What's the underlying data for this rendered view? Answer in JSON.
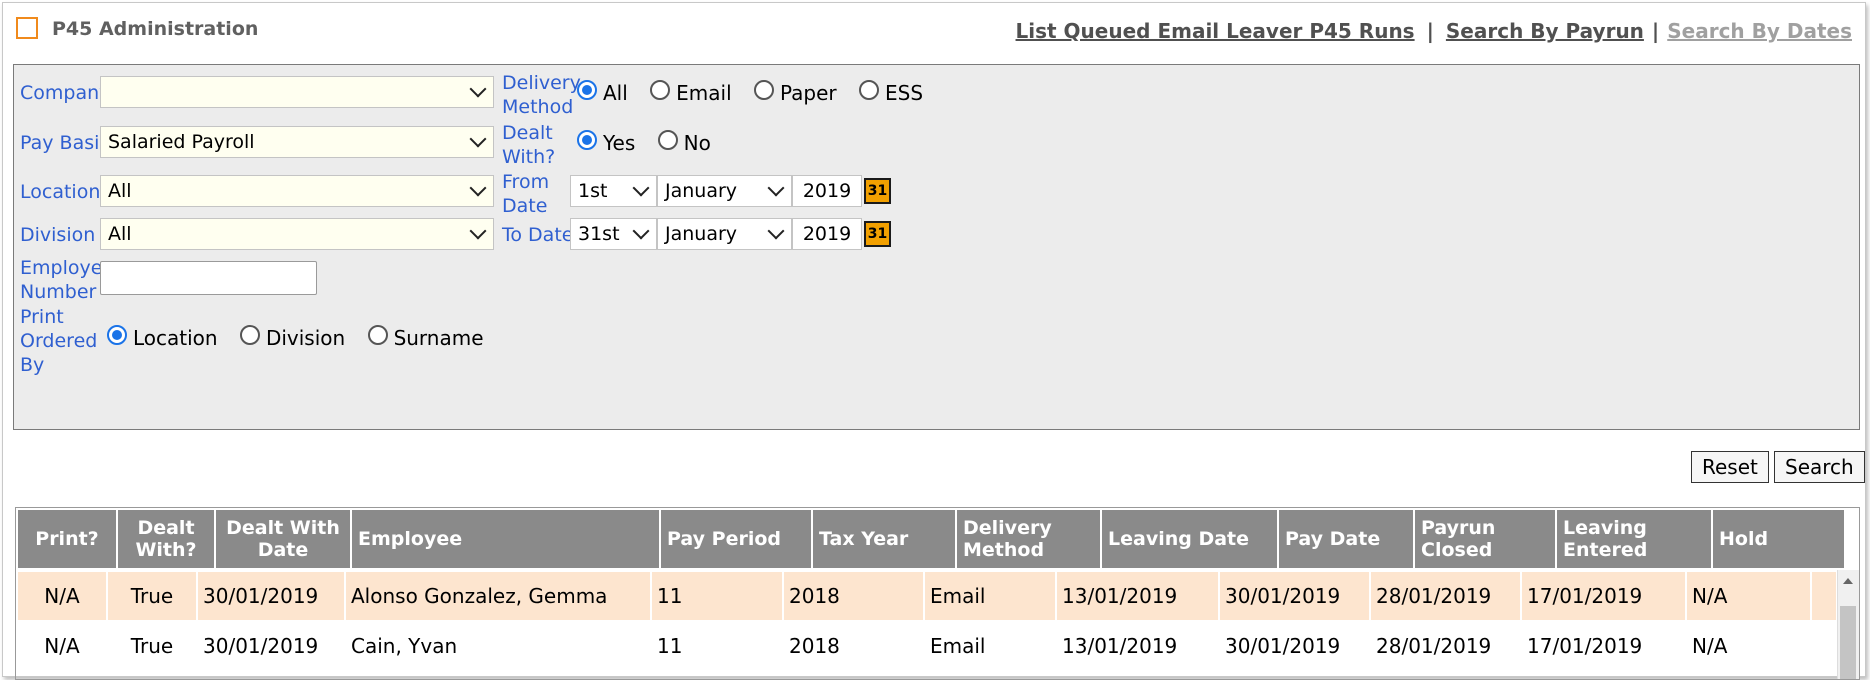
{
  "header": {
    "title": "P45 Administration",
    "links": [
      "List Queued Email Leaver P45 Runs",
      "Search By Payrun",
      "Search By Dates"
    ],
    "separators": [
      "|",
      "|"
    ]
  },
  "filters": {
    "company": {
      "label": "Company",
      "value": ""
    },
    "pay_basis": {
      "label": "Pay Basis",
      "value": "Salaried Payroll"
    },
    "location": {
      "label": "Location",
      "value": "All"
    },
    "division": {
      "label": "Division",
      "value": "All"
    },
    "employee_number": {
      "label_line1": "Employee",
      "label_line2": "Number",
      "value": ""
    },
    "print_ordered_by": {
      "label_line1": "Print",
      "label_line2": "Ordered",
      "label_line3": "By",
      "options": [
        "Location",
        "Division",
        "Surname"
      ],
      "selected": "Location"
    },
    "delivery_method": {
      "label_line1": "Delivery",
      "label_line2": "Method",
      "options": [
        "All",
        "Email",
        "Paper",
        "ESS"
      ],
      "selected": "All"
    },
    "dealt_with": {
      "label_line1": "Dealt",
      "label_line2": "With?",
      "options": [
        "Yes",
        "No"
      ],
      "selected": "Yes"
    },
    "from_date": {
      "label_line1": "From",
      "label_line2": "Date",
      "day": "1st",
      "month": "January",
      "year": "2019",
      "calendar": "31"
    },
    "to_date": {
      "label": "To Date",
      "day": "31st",
      "month": "January",
      "year": "2019",
      "calendar": "31"
    }
  },
  "buttons": {
    "reset": "Reset",
    "search": "Search"
  },
  "table": {
    "headers": [
      {
        "l1": "Print?",
        "l2": ""
      },
      {
        "l1": "Dealt",
        "l2": "With?"
      },
      {
        "l1": "Dealt With",
        "l2": "Date"
      },
      {
        "l1": "Employee",
        "l2": ""
      },
      {
        "l1": "Pay Period",
        "l2": ""
      },
      {
        "l1": "Tax Year",
        "l2": ""
      },
      {
        "l1": "Delivery",
        "l2": "Method"
      },
      {
        "l1": "Leaving Date",
        "l2": ""
      },
      {
        "l1": "Pay Date",
        "l2": ""
      },
      {
        "l1": "Payrun",
        "l2": "Closed"
      },
      {
        "l1": "Leaving",
        "l2": "Entered"
      },
      {
        "l1": "Hold",
        "l2": ""
      }
    ],
    "rows": [
      [
        "N/A",
        "True",
        "30/01/2019",
        "Alonso Gonzalez, Gemma",
        "11",
        "2018",
        "Email",
        "13/01/2019",
        "30/01/2019",
        "28/01/2019",
        "17/01/2019",
        "N/A"
      ],
      [
        "N/A",
        "True",
        "30/01/2019",
        "Cain, Yvan",
        "11",
        "2018",
        "Email",
        "13/01/2019",
        "30/01/2019",
        "28/01/2019",
        "17/01/2019",
        "N/A"
      ]
    ]
  },
  "colors": {
    "label_blue": "#2f5fd0",
    "header_gray": "#8a8a8a",
    "highlight_row": "#fde5cf",
    "radio_blue": "#1a73e8",
    "logo_orange": "#f08a1c"
  }
}
